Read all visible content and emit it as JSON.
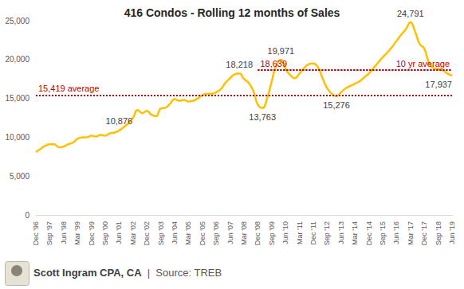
{
  "chart_data": {
    "type": "line",
    "title": "416 Condos - Rolling 12 months of Sales",
    "footer": [
      "Scott Ingram CPA, CA",
      "|",
      "Source: TREB"
    ],
    "color": "#ffc000",
    "grid": false,
    "categories": [
      "Dec '96",
      null,
      null,
      "Sep '97",
      null,
      null,
      "Jun '98",
      null,
      null,
      "Mar '99",
      null,
      null,
      "Dec '99",
      null,
      null,
      "Sep '00",
      null,
      null,
      "Jun '01",
      null,
      null,
      "Mar '02",
      null,
      null,
      "Dec '02",
      null,
      null,
      "Sep '03",
      null,
      null,
      "Jun '04",
      null,
      null,
      "Mar '05",
      null,
      null,
      "Dec '05",
      null,
      null,
      "Sep '06",
      null,
      null,
      "Jun '07",
      null,
      null,
      "Mar '08",
      null,
      null,
      "Dec '08",
      null,
      null,
      "Sep '09",
      null,
      null,
      "Jun '10",
      null,
      null,
      "Mar '11",
      null,
      null,
      "Dec '11",
      null,
      null,
      "Sep '12",
      null,
      null,
      "Jun '13",
      null,
      null,
      "Mar '14",
      null,
      null,
      "Dec '14",
      null,
      null,
      "Sep '15",
      null,
      null,
      "Jun '16",
      null,
      null,
      "Mar '17",
      null,
      null,
      "Dec '17",
      null,
      null,
      "Sep '18",
      null,
      null,
      "Jun '19"
    ],
    "values": [
      8100,
      8500,
      8900,
      9100,
      9100,
      8700,
      8800,
      9100,
      9300,
      9800,
      10000,
      10000,
      10200,
      10100,
      10300,
      10200,
      10500,
      10600,
      10876,
      11300,
      11800,
      12500,
      13500,
      13100,
      13400,
      12900,
      12700,
      13700,
      13800,
      14300,
      14900,
      14700,
      14800,
      14600,
      14700,
      15000,
      15400,
      15600,
      15600,
      15800,
      16200,
      17000,
      17600,
      18100,
      18218,
      17500,
      17000,
      16000,
      14200,
      13763,
      15000,
      17200,
      19300,
      19971,
      18800,
      18000,
      17600,
      18200,
      18900,
      19400,
      19500,
      19000,
      17600,
      16300,
      15600,
      15276,
      15800,
      16300,
      16600,
      16900,
      17200,
      17700,
      18200,
      18900,
      19600,
      20300,
      20900,
      21600,
      22400,
      23200,
      23900,
      24791,
      23600,
      22000,
      21400,
      19600,
      18900,
      18800,
      18600,
      18200,
      17937
    ],
    "value_labels": [
      null,
      null,
      null,
      null,
      null,
      null,
      null,
      null,
      null,
      null,
      null,
      null,
      null,
      null,
      null,
      null,
      null,
      null,
      "10,876",
      null,
      null,
      null,
      null,
      null,
      null,
      null,
      null,
      null,
      null,
      null,
      null,
      null,
      null,
      null,
      null,
      null,
      null,
      null,
      null,
      null,
      null,
      null,
      null,
      null,
      "18,218",
      null,
      null,
      null,
      null,
      "13,763",
      null,
      null,
      null,
      "19,971",
      null,
      null,
      null,
      null,
      null,
      null,
      null,
      null,
      null,
      null,
      null,
      "15,276",
      null,
      null,
      null,
      null,
      null,
      null,
      null,
      null,
      null,
      null,
      null,
      null,
      null,
      null,
      null,
      "24,791",
      null,
      null,
      null,
      null,
      null,
      null,
      null,
      null,
      "17,937"
    ],
    "reference_lines": [
      {
        "value": 15419,
        "labels": [
          "15,419 average"
        ],
        "from": "Dec '96",
        "color": "#c00000",
        "line_style": "dotted"
      },
      {
        "value": 18639,
        "labels": [
          "18,639",
          "10 yr average"
        ],
        "from": "Dec '08",
        "color": "#c00000",
        "line_style": "dotted"
      }
    ],
    "ylim": [
      0,
      25000
    ],
    "yticks": [
      0,
      {
        "value": 5000,
        "label": "5,000"
      },
      {
        "value": 10000,
        "label": "10,000"
      },
      {
        "value": 15000,
        "label": "15,000"
      },
      {
        "value": 20000,
        "label": "20,000"
      },
      {
        "value": 25000,
        "label": "25,000"
      }
    ]
  }
}
